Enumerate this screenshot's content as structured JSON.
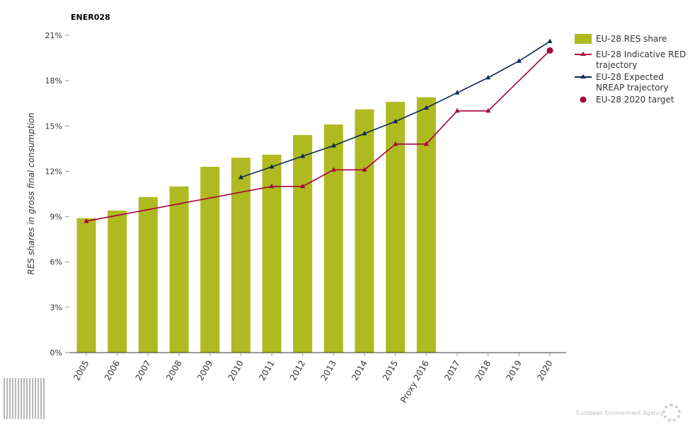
{
  "title": "ENER028",
  "footer": {
    "agency": "European Environment Agency"
  },
  "colors": {
    "bars": "#afba20",
    "red": "#a6003a",
    "nreap": "#0b2a4e",
    "target": "#a6003a"
  },
  "chart_data": {
    "type": "bar",
    "title": "ENER028",
    "ylabel": "RES shares in gross final consumption",
    "xlabel": "",
    "ylim": [
      0,
      21
    ],
    "yticks": [
      "0%",
      "3%",
      "6%",
      "9%",
      "12%",
      "15%",
      "18%",
      "21%"
    ],
    "categories": [
      "2005",
      "2006",
      "2007",
      "2008",
      "2009",
      "2010",
      "2011",
      "2012",
      "2013",
      "2014",
      "2015",
      "Proxy 2016",
      "2017",
      "2018",
      "2019",
      "2020"
    ],
    "series": [
      {
        "name": "EU-28 RES share",
        "type": "bar",
        "values": [
          8.9,
          9.4,
          10.3,
          11.0,
          12.3,
          12.9,
          13.1,
          14.4,
          15.1,
          16.1,
          16.6,
          16.9,
          null,
          null,
          null,
          null
        ]
      },
      {
        "name": "EU-28 Indicative RED trajectory",
        "type": "line",
        "values": [
          8.7,
          null,
          null,
          null,
          null,
          null,
          11.0,
          11.0,
          12.1,
          12.1,
          13.8,
          13.8,
          16.0,
          16.0,
          null,
          20.0
        ]
      },
      {
        "name": "EU-28 Expected NREAP trajectory",
        "type": "line",
        "values": [
          null,
          null,
          null,
          null,
          null,
          11.6,
          12.3,
          13.0,
          13.7,
          14.5,
          15.3,
          16.2,
          17.2,
          18.2,
          19.3,
          20.6
        ]
      },
      {
        "name": "EU-28 2020 target",
        "type": "scatter",
        "values": [
          null,
          null,
          null,
          null,
          null,
          null,
          null,
          null,
          null,
          null,
          null,
          null,
          null,
          null,
          null,
          20.0
        ]
      }
    ],
    "legend": "top-right",
    "grid": false
  }
}
